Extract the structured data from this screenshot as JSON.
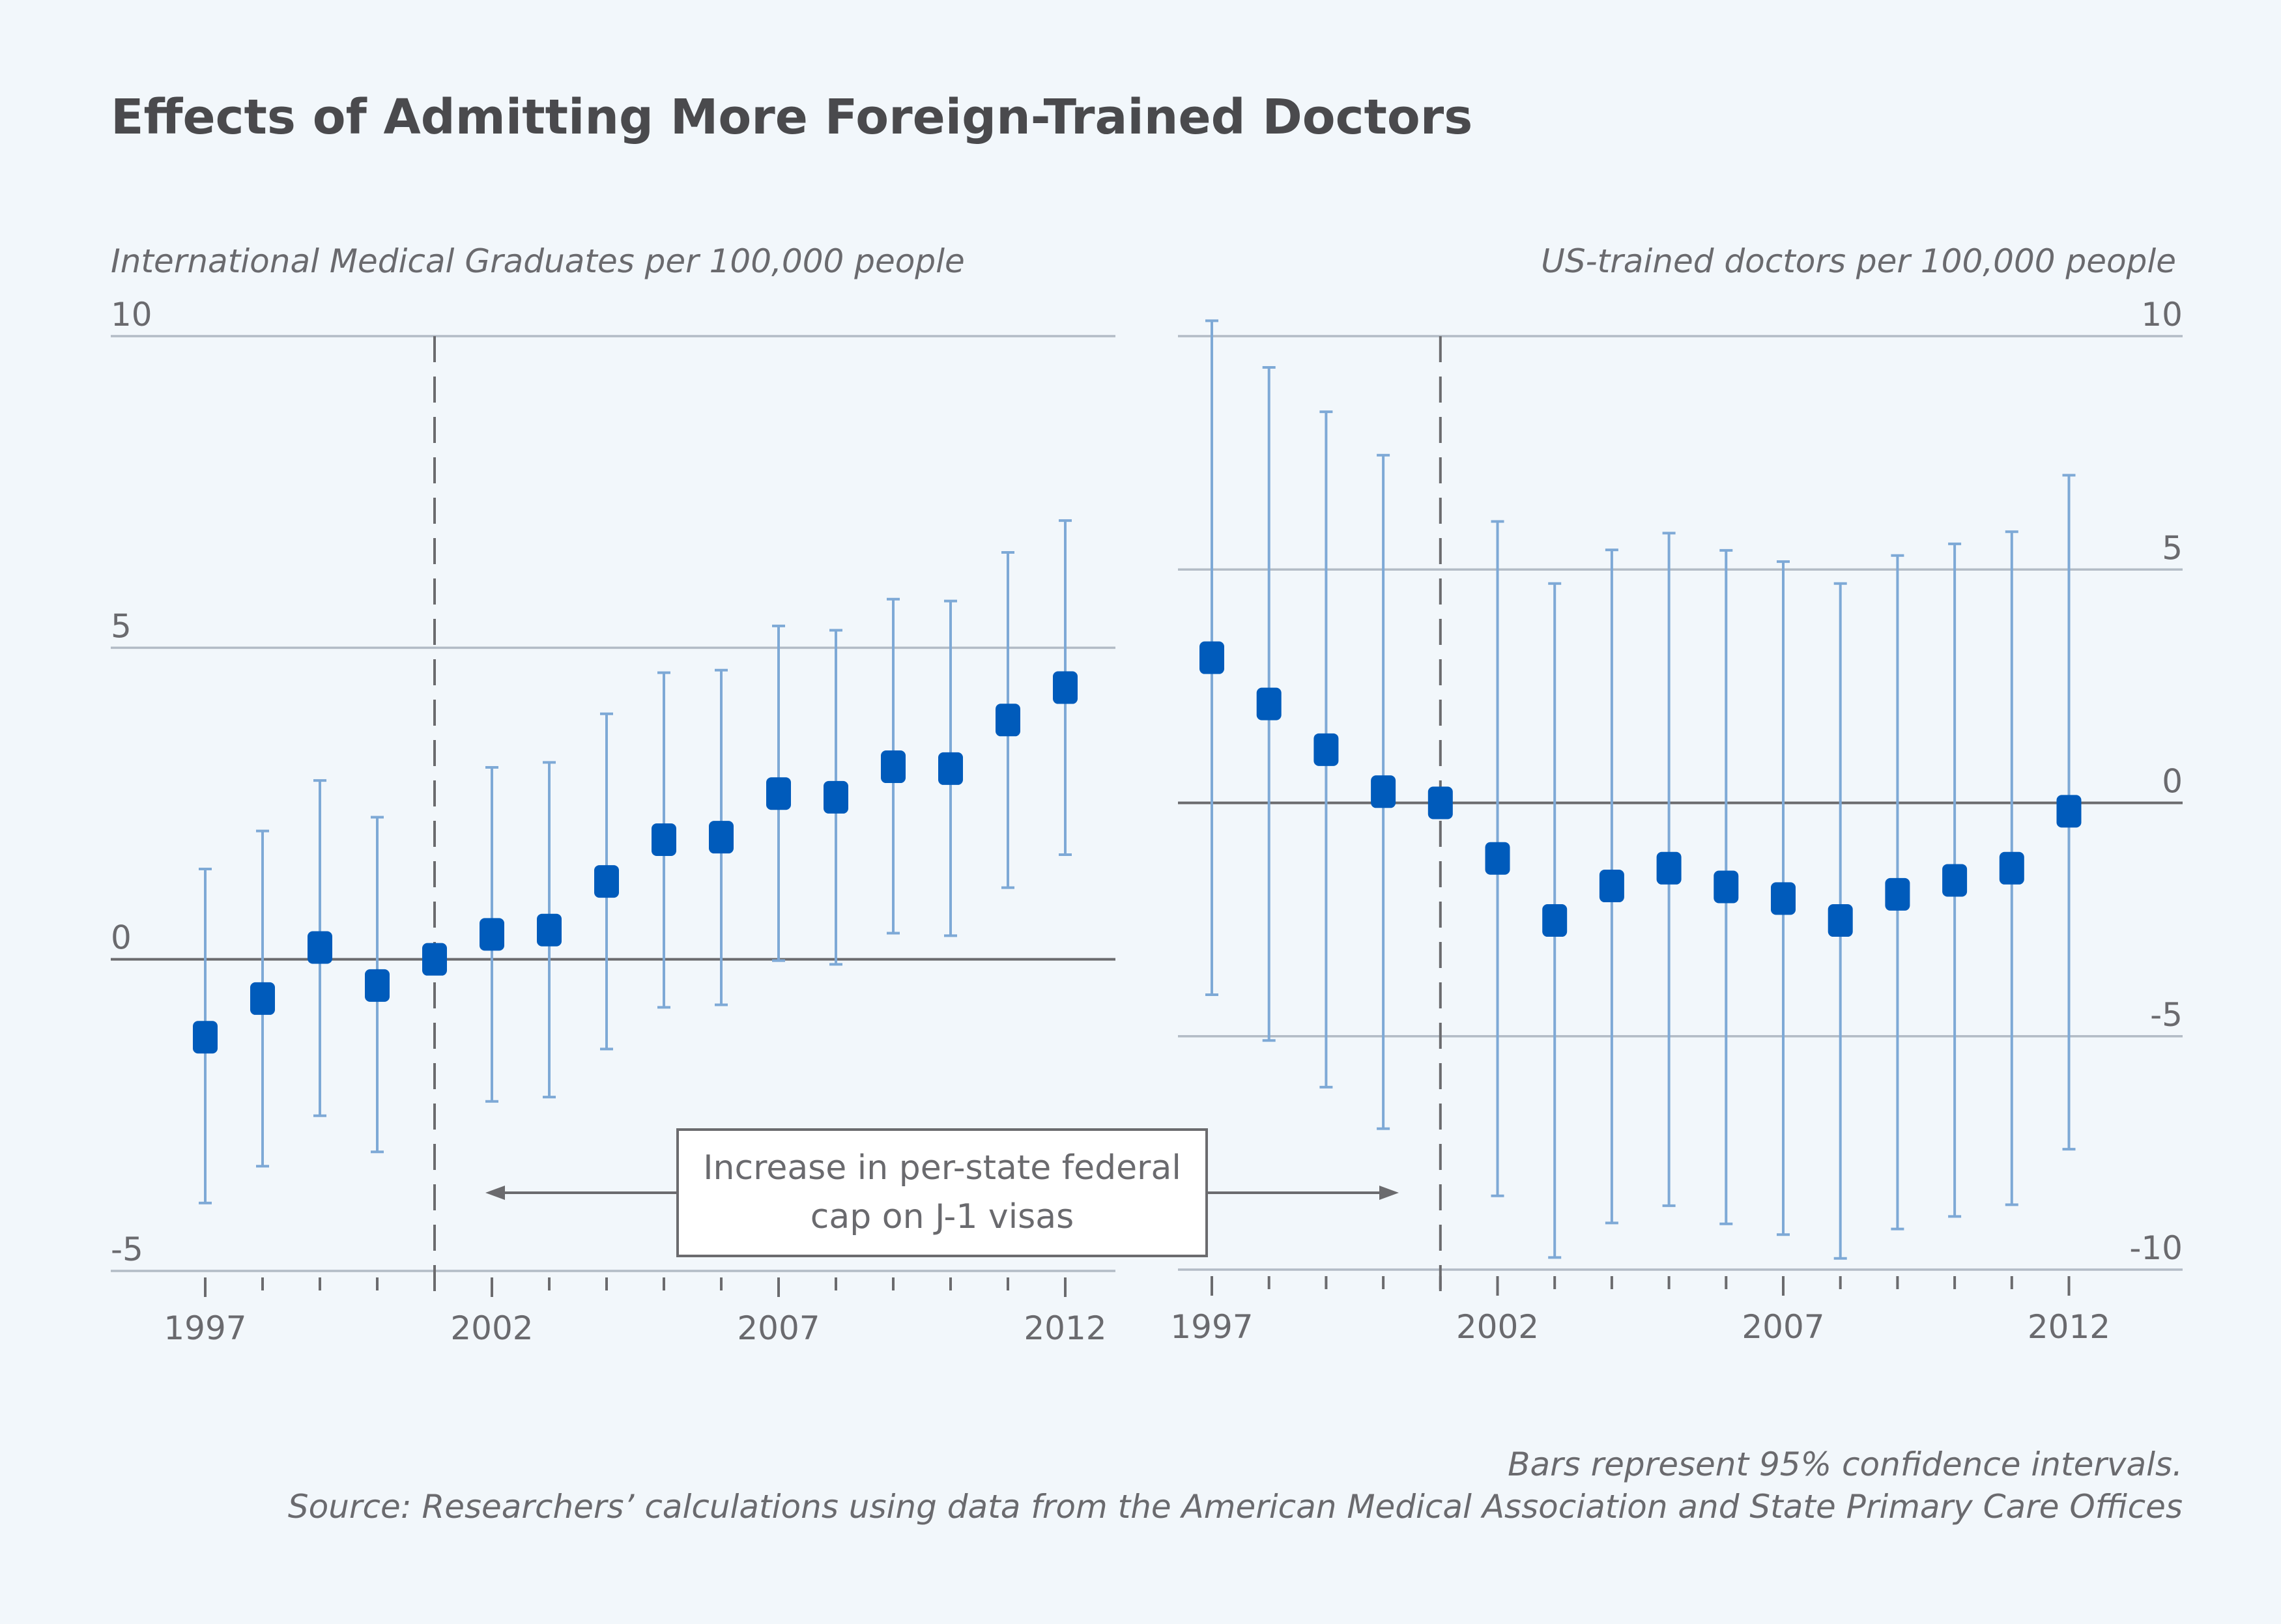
{
  "title": "Effects of Admitting More Foreign-Trained Doctors",
  "colors": {
    "marker": "#005bbb",
    "ci": "#7ea9d6",
    "grid": "#b3bcc6",
    "zero": "#6b6b6e",
    "text": "#6a6a6e"
  },
  "annotation": {
    "line1": "Increase in per-state federal",
    "line2": "cap on J-1 visas"
  },
  "footer": {
    "note": "Bars represent 95% confidence intervals.",
    "source": "Source: Researchers’ calculations using data from the American Medical Association and State Primary Care Offices"
  },
  "chart_data": [
    {
      "type": "scatter",
      "title": "International Medical Graduates per 100,000 people",
      "ylabel": "International Medical Graduates per 100,000 people",
      "ylim": [
        -5,
        10
      ],
      "yticks": [
        "10",
        "5",
        "0",
        "-5"
      ],
      "ytick_values": [
        10,
        5,
        0,
        -5
      ],
      "xtick_labels": [
        "1997",
        "2002",
        "2007",
        "2012"
      ],
      "reference_year": 2001,
      "x": [
        1997,
        1998,
        1999,
        2000,
        2001,
        2002,
        2003,
        2004,
        2005,
        2006,
        2007,
        2008,
        2009,
        2010,
        2011,
        2012
      ],
      "values": [
        -1.25,
        -0.63,
        0.19,
        -0.42,
        0.0,
        0.4,
        0.47,
        1.25,
        1.92,
        1.96,
        2.66,
        2.6,
        3.09,
        3.06,
        3.84,
        4.36
      ],
      "ci_high": [
        1.45,
        2.06,
        2.87,
        2.28,
        null,
        3.08,
        3.16,
        3.94,
        4.6,
        4.64,
        5.35,
        5.28,
        5.78,
        5.75,
        6.53,
        7.04
      ],
      "ci_low": [
        -3.91,
        -3.32,
        -2.51,
        -3.09,
        null,
        -2.28,
        -2.21,
        -1.44,
        -0.77,
        -0.73,
        -0.02,
        -0.08,
        0.42,
        0.38,
        1.15,
        1.68
      ]
    },
    {
      "type": "scatter",
      "title": "US-trained doctors per 100,000 people",
      "ylabel": "US-trained doctors per 100,000 people",
      "ylim": [
        -10,
        10
      ],
      "yticks": [
        "10",
        "5",
        "0",
        "-5",
        "-10"
      ],
      "ytick_values": [
        10,
        5,
        0,
        -5,
        -10
      ],
      "xtick_labels": [
        "1997",
        "2002",
        "2007",
        "2012"
      ],
      "reference_year": 2001,
      "x": [
        1997,
        1998,
        1999,
        2000,
        2001,
        2002,
        2003,
        2004,
        2005,
        2006,
        2007,
        2008,
        2009,
        2010,
        2011,
        2012
      ],
      "values": [
        3.11,
        2.12,
        1.14,
        0.24,
        0.0,
        -1.19,
        -2.52,
        -1.78,
        -1.4,
        -1.8,
        -2.05,
        -2.52,
        -1.96,
        -1.66,
        -1.4,
        -0.18
      ],
      "ci_high": [
        10.33,
        9.33,
        8.38,
        7.45,
        null,
        6.03,
        4.7,
        5.42,
        5.78,
        5.41,
        5.17,
        4.7,
        5.3,
        5.55,
        5.81,
        7.02
      ],
      "ci_low": [
        -4.11,
        -5.09,
        -6.09,
        -6.98,
        null,
        -8.42,
        -9.74,
        -9.0,
        -8.63,
        -9.02,
        -9.25,
        -9.76,
        -9.13,
        -8.86,
        -8.61,
        -7.42
      ]
    }
  ]
}
